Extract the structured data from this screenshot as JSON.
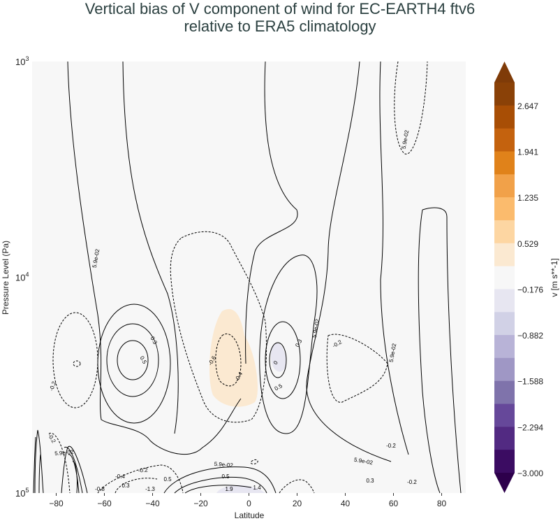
{
  "chart_data": {
    "type": "contour",
    "title_line1": "Vertical bias of V component of wind for EC-EARTH4 ftv6",
    "title_line2": "relative to ERA5 climatology",
    "xlabel": "Latitude",
    "ylabel": "Pressure Level (Pa)",
    "xlim": [
      -90,
      90
    ],
    "ylim": [
      100000,
      1000
    ],
    "yscale": "log",
    "xticks": [
      -80,
      -60,
      -40,
      -20,
      0,
      20,
      40,
      60,
      80
    ],
    "xtick_labels": [
      "−80",
      "−60",
      "−40",
      "−20",
      "0",
      "20",
      "40",
      "60",
      "80"
    ],
    "yticks": [
      1000,
      10000,
      100000
    ],
    "ytick_labels": [
      {
        "base": "10",
        "exp": "3"
      },
      {
        "base": "10",
        "exp": "4"
      },
      {
        "base": "10",
        "exp": "5"
      }
    ],
    "colorbar": {
      "label": "v [m s**-1]",
      "range": [
        -3.0,
        3.0
      ],
      "extend": "both",
      "tick_labels": [
        "2.647",
        "1.941",
        "1.235",
        "0.529",
        "−0.176",
        "−0.882",
        "−1.588",
        "−2.294",
        "−3.000"
      ],
      "tick_values": [
        2.647,
        1.941,
        1.235,
        0.529,
        -0.176,
        -0.882,
        -1.588,
        -2.294,
        -3.0
      ],
      "colors_top_to_bottom": [
        "#7f3b08",
        "#8a4107",
        "#a84e05",
        "#c4620e",
        "#e0821a",
        "#f1a149",
        "#fbbb6d",
        "#fdd6a2",
        "#fbe9d1",
        "#f7f7f7",
        "#e7e6f1",
        "#d1d1e6",
        "#b8b3d7",
        "#9f97c5",
        "#7f73ab",
        "#66489a",
        "#522a82",
        "#3b0c62",
        "#2d004b"
      ]
    },
    "contour_labels": [
      "5.9e-02",
      "5.9e-02",
      "5.9e-02",
      "5.9e-02",
      "5.9e-02",
      "5.9e-02",
      "5.9e-02",
      "-0.2",
      "-0.2",
      "-0.2",
      "-0.2",
      "-0.2",
      "0.3",
      "0.5",
      "0.3",
      "0.5",
      "-0.6",
      "-0.4",
      "0",
      "0.5",
      "0.3",
      "0.5",
      "-0.4",
      "-0.8",
      "-1.3",
      "0.3",
      "-0.2",
      "1.9",
      "1.4"
    ]
  }
}
